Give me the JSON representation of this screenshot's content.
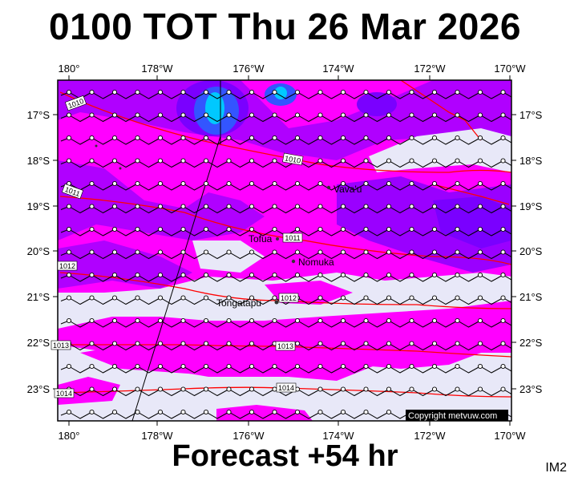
{
  "title": "0100 TOT Thu 26 Mar 2026",
  "footer": "Forecast +54 hr",
  "code": "IM2",
  "copyright": "Copyright metvuw.com",
  "colors": {
    "background": "#e8e8f8",
    "magenta": "#ff00ff",
    "violet": "#b000ff",
    "purple": "#7a00ff",
    "blue": "#3355ff",
    "cyan": "#00c8ff",
    "isobar": "#ff0000"
  },
  "lon_labels": [
    "180°",
    "178°W",
    "176°W",
    "174°W",
    "172°W",
    "170°W"
  ],
  "lat_labels": [
    "17°S",
    "18°S",
    "19°S",
    "20°S",
    "21°S",
    "22°S",
    "23°S"
  ],
  "places": [
    {
      "name": "Vava'u"
    },
    {
      "name": "Tofua"
    },
    {
      "name": "Nomuka"
    },
    {
      "name": "Tongatapu"
    }
  ],
  "isobars": [
    "1010",
    "1010",
    "1011",
    "1011",
    "1012",
    "1012",
    "1013",
    "1013",
    "1014",
    "1014"
  ]
}
